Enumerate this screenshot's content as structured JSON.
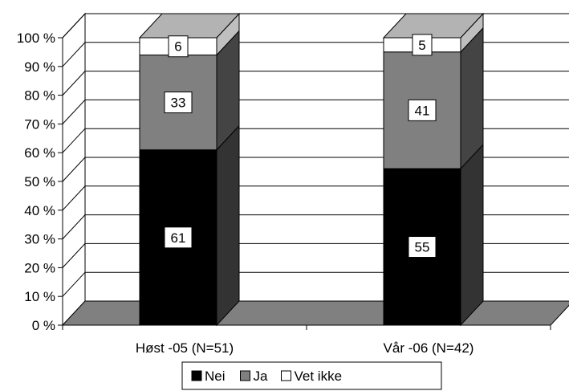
{
  "chart_data": {
    "type": "bar",
    "stacked": true,
    "percent_axis": true,
    "categories": [
      "Høst -05 (N=51)",
      "Vår -06 (N=42)"
    ],
    "series": [
      {
        "name": "Nei",
        "values": [
          61,
          55
        ],
        "color": "#000000"
      },
      {
        "name": "Ja",
        "values": [
          33,
          41
        ],
        "color": "#808080"
      },
      {
        "name": "Vet ikke",
        "values": [
          6,
          5
        ],
        "color": "#ffffff"
      }
    ],
    "ylim": [
      0,
      100
    ],
    "y_ticks": [
      "0 %",
      "10 %",
      "20 %",
      "30 %",
      "40 %",
      "50 %",
      "60 %",
      "70 %",
      "80 %",
      "90 %",
      "100 %"
    ],
    "grid": true,
    "legend_position": "bottom",
    "style": "3d-column"
  }
}
